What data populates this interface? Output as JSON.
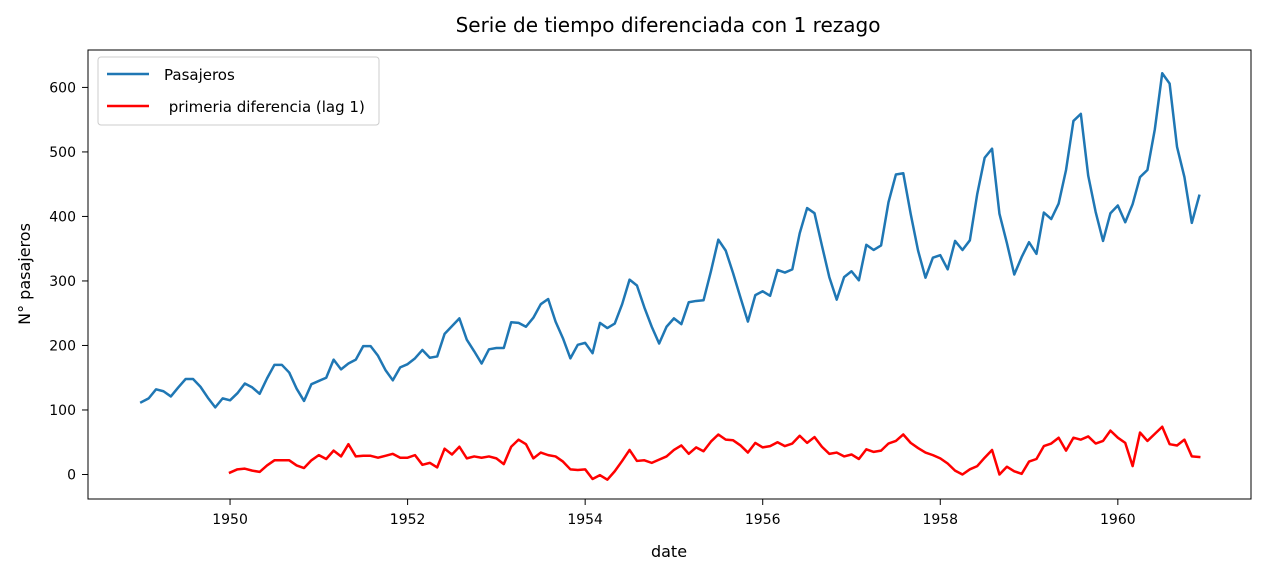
{
  "chart_data": {
    "type": "line",
    "title": "Serie de tiempo diferenciada con 1 rezago",
    "xlabel": "date",
    "ylabel": "N° pasajeros",
    "xlim": [
      1948.4,
      1961.5
    ],
    "ylim": [
      -38,
      658
    ],
    "x_ticks": [
      1950,
      1952,
      1954,
      1956,
      1958,
      1960
    ],
    "x_tick_labels": [
      "1950",
      "1952",
      "1954",
      "1956",
      "1958",
      "1960"
    ],
    "y_ticks": [
      0,
      100,
      200,
      300,
      400,
      500,
      600
    ],
    "y_tick_labels": [
      "0",
      "100",
      "200",
      "300",
      "400",
      "500",
      "600"
    ],
    "legend": {
      "placement": "top-left"
    },
    "x_start": 1949.0,
    "x_step": 0.0833333,
    "series": [
      {
        "name": "Pasajeros",
        "color": "#1f77b4",
        "values": [
          112,
          118,
          132,
          129,
          121,
          135,
          148,
          148,
          136,
          119,
          104,
          118,
          115,
          126,
          141,
          135,
          125,
          149,
          170,
          170,
          158,
          133,
          114,
          140,
          145,
          150,
          178,
          163,
          172,
          178,
          199,
          199,
          184,
          162,
          146,
          166,
          171,
          180,
          193,
          181,
          183,
          218,
          230,
          242,
          209,
          191,
          172,
          194,
          196,
          196,
          236,
          235,
          229,
          243,
          264,
          272,
          237,
          211,
          180,
          201,
          204,
          188,
          235,
          227,
          234,
          264,
          302,
          293,
          259,
          229,
          203,
          229,
          242,
          233,
          267,
          269,
          270,
          315,
          364,
          347,
          312,
          274,
          237,
          278,
          284,
          277,
          317,
          313,
          318,
          374,
          413,
          405,
          355,
          306,
          271,
          306,
          315,
          301,
          356,
          348,
          355,
          422,
          465,
          467,
          404,
          347,
          305,
          336,
          340,
          318,
          362,
          348,
          363,
          435,
          491,
          505,
          404,
          359,
          310,
          337,
          360,
          342,
          406,
          396,
          420,
          472,
          548,
          559,
          463,
          407,
          362,
          405,
          417,
          391,
          419,
          461,
          472,
          535,
          622,
          606,
          508,
          461,
          390,
          432
        ]
      },
      {
        "name": " primeria diferencia (lag 1)",
        "color": "#ff0000",
        "values": [
          null,
          null,
          null,
          null,
          null,
          null,
          null,
          null,
          null,
          null,
          null,
          null,
          3,
          8,
          9,
          6,
          4,
          14,
          22,
          22,
          22,
          14,
          10,
          22,
          30,
          24,
          37,
          28,
          47,
          28,
          29,
          29,
          26,
          29,
          32,
          26,
          26,
          30,
          15,
          18,
          11,
          40,
          31,
          43,
          25,
          28,
          26,
          28,
          25,
          16,
          43,
          54,
          47,
          25,
          34,
          30,
          28,
          20,
          8,
          7,
          8,
          -7,
          -1,
          -8,
          5,
          21,
          38,
          21,
          22,
          18,
          23,
          28,
          38,
          45,
          32,
          42,
          36,
          51,
          62,
          54,
          53,
          45,
          34,
          49,
          42,
          44,
          50,
          44,
          48,
          60,
          49,
          58,
          43,
          32,
          34,
          28,
          31,
          24,
          39,
          35,
          37,
          48,
          52,
          62,
          49,
          41,
          34,
          30,
          25,
          17,
          6,
          0,
          8,
          13,
          26,
          38,
          0,
          12,
          5,
          1,
          20,
          24,
          44,
          48,
          57,
          37,
          57,
          54,
          59,
          48,
          52,
          68,
          57,
          49,
          13,
          65,
          52,
          63,
          74,
          47,
          45,
          54,
          28,
          27
        ]
      }
    ]
  }
}
